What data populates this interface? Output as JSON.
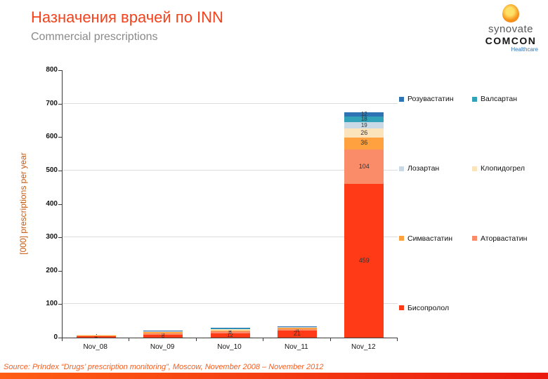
{
  "title": "Назначения врачей по INN",
  "subtitle": "Commercial prescriptions",
  "logo": {
    "brand": "synovate",
    "sub": "COMCON",
    "tagline": "Healthcare"
  },
  "footer": {
    "source": "Source: PrIndex “Drugs’ prescription monitoring”, Moscow, November 2008 – November 2012"
  },
  "chart_data": {
    "type": "bar",
    "stacked": true,
    "title": "",
    "xlabel": "",
    "ylabel": "[000] prescriptions per year",
    "ylim": [
      0,
      800
    ],
    "ytick_step": 100,
    "gridlines": [
      100,
      300,
      500,
      700
    ],
    "label_min": 4,
    "legend_position": "right",
    "categories": [
      "Nov_08",
      "Nov_09",
      "Nov_10",
      "Nov_11",
      "Nov_12"
    ],
    "series": [
      {
        "name": "Бисопролол",
        "color": "#FE3A17",
        "values": [
          4,
          8,
          12,
          21,
          459
        ]
      },
      {
        "name": "Аторвастатин",
        "color": "#FB8C69",
        "values": [
          2,
          5,
          6,
          5,
          104
        ]
      },
      {
        "name": "Симвастатин",
        "color": "#FEA13E",
        "values": [
          1,
          3,
          4,
          3,
          36
        ]
      },
      {
        "name": "Клопидогрел",
        "color": "#FBE3BC",
        "values": [
          1,
          2,
          3,
          2,
          26
        ]
      },
      {
        "name": "Лозартан",
        "color": "#C9D9E5",
        "values": [
          0,
          2,
          2,
          1,
          19
        ]
      },
      {
        "name": "Валсартан",
        "color": "#31A2B8",
        "values": [
          0,
          1,
          1,
          1,
          18
        ]
      },
      {
        "name": "Розувастатин",
        "color": "#2E74B5",
        "values": [
          0,
          1,
          1,
          1,
          12
        ]
      }
    ]
  }
}
